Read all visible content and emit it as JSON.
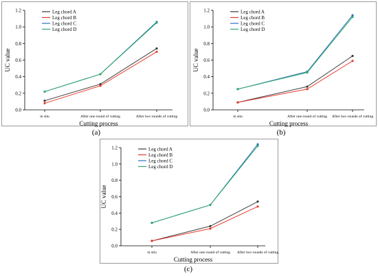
{
  "chart_data": [
    {
      "type": "line",
      "panel_label": "(a)",
      "xlabel": "Cutting process",
      "ylabel": "UC value",
      "categories": [
        "in situ",
        "After one round of cutting",
        "After two rounds of cutting"
      ],
      "ylim": [
        0,
        1.2
      ],
      "yticks": [
        "0.0",
        "0.2",
        "0.4",
        "0.6",
        "0.8",
        "1.0",
        "1.2"
      ],
      "legend_position": "top-left",
      "grid": false,
      "series": [
        {
          "name": "Leg chord A",
          "color": "#3a3a3a",
          "values": [
            0.11,
            0.31,
            0.74
          ]
        },
        {
          "name": "Leg chord B",
          "color": "#e8392b",
          "values": [
            0.08,
            0.29,
            0.7
          ]
        },
        {
          "name": "Leg chord C",
          "color": "#2b6fc0",
          "values": [
            0.22,
            0.43,
            1.06
          ]
        },
        {
          "name": "Leg chord D",
          "color": "#2ea86a",
          "values": [
            0.22,
            0.43,
            1.05
          ]
        }
      ]
    },
    {
      "type": "line",
      "panel_label": "(b)",
      "xlabel": "Cutting process",
      "ylabel": "UC value",
      "categories": [
        "in situ",
        "After one round of cutting",
        "After two rounds of cutting"
      ],
      "ylim": [
        0,
        1.2
      ],
      "yticks": [
        "0.0",
        "0.2",
        "0.4",
        "0.6",
        "0.8",
        "1.0",
        "1.2"
      ],
      "legend_position": "top-left",
      "grid": false,
      "series": [
        {
          "name": "Leg chord A",
          "color": "#3a3a3a",
          "values": [
            0.09,
            0.28,
            0.65
          ]
        },
        {
          "name": "Leg chord B",
          "color": "#e8392b",
          "values": [
            0.09,
            0.25,
            0.59
          ]
        },
        {
          "name": "Leg chord C",
          "color": "#2b6fc0",
          "values": [
            0.25,
            0.46,
            1.14
          ]
        },
        {
          "name": "Leg chord D",
          "color": "#2ea86a",
          "values": [
            0.25,
            0.45,
            1.12
          ]
        }
      ]
    },
    {
      "type": "line",
      "panel_label": "(c)",
      "xlabel": "Cutting process",
      "ylabel": "UC value",
      "categories": [
        "in situ",
        "After one round of cutting",
        "After two rounds of cutting"
      ],
      "ylim": [
        0,
        1.2
      ],
      "yticks": [
        "0.0",
        "0.2",
        "0.4",
        "0.6",
        "0.8",
        "1.0",
        "1.2"
      ],
      "legend_position": "top-left",
      "grid": false,
      "series": [
        {
          "name": "Leg chord A",
          "color": "#3a3a3a",
          "values": [
            0.06,
            0.24,
            0.54
          ]
        },
        {
          "name": "Leg chord B",
          "color": "#e8392b",
          "values": [
            0.06,
            0.21,
            0.48
          ]
        },
        {
          "name": "Leg chord C",
          "color": "#2b6fc0",
          "values": [
            0.28,
            0.5,
            1.24
          ]
        },
        {
          "name": "Leg chord D",
          "color": "#2ea86a",
          "values": [
            0.28,
            0.5,
            1.22
          ]
        }
      ]
    }
  ]
}
